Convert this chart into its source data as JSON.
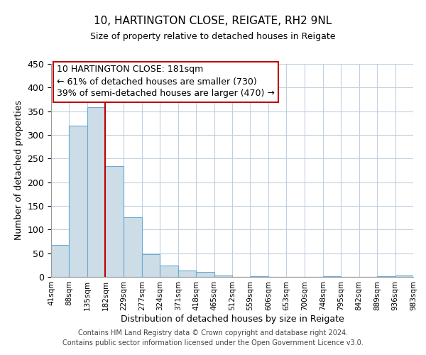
{
  "title": "10, HARTINGTON CLOSE, REIGATE, RH2 9NL",
  "subtitle": "Size of property relative to detached houses in Reigate",
  "xlabel": "Distribution of detached houses by size in Reigate",
  "ylabel": "Number of detached properties",
  "footer_line1": "Contains HM Land Registry data © Crown copyright and database right 2024.",
  "footer_line2": "Contains public sector information licensed under the Open Government Licence v3.0.",
  "bin_edges": [
    41,
    88,
    135,
    182,
    229,
    277,
    324,
    371,
    418,
    465,
    512,
    559,
    606,
    653,
    700,
    748,
    795,
    842,
    889,
    936,
    983
  ],
  "bar_heights": [
    67,
    320,
    358,
    234,
    126,
    48,
    24,
    14,
    11,
    3,
    0,
    1,
    0,
    0,
    0,
    1,
    0,
    0,
    2,
    3
  ],
  "bar_color": "#ccdde8",
  "bar_edge_color": "#6aaad4",
  "vline_x": 181,
  "vline_color": "#c00000",
  "ylim": [
    0,
    450
  ],
  "annotation_title": "10 HARTINGTON CLOSE: 181sqm",
  "annotation_line1": "← 61% of detached houses are smaller (730)",
  "annotation_line2": "39% of semi-detached houses are larger (470) →",
  "tick_labels": [
    "41sqm",
    "88sqm",
    "135sqm",
    "182sqm",
    "229sqm",
    "277sqm",
    "324sqm",
    "371sqm",
    "418sqm",
    "465sqm",
    "512sqm",
    "559sqm",
    "606sqm",
    "653sqm",
    "700sqm",
    "748sqm",
    "795sqm",
    "842sqm",
    "889sqm",
    "936sqm",
    "983sqm"
  ],
  "background_color": "#ffffff",
  "grid_color": "#c0d0e0",
  "title_fontsize": 11,
  "subtitle_fontsize": 9,
  "ylabel_fontsize": 9,
  "xlabel_fontsize": 9,
  "tick_fontsize": 7.5,
  "annotation_fontsize": 9,
  "footer_fontsize": 7
}
